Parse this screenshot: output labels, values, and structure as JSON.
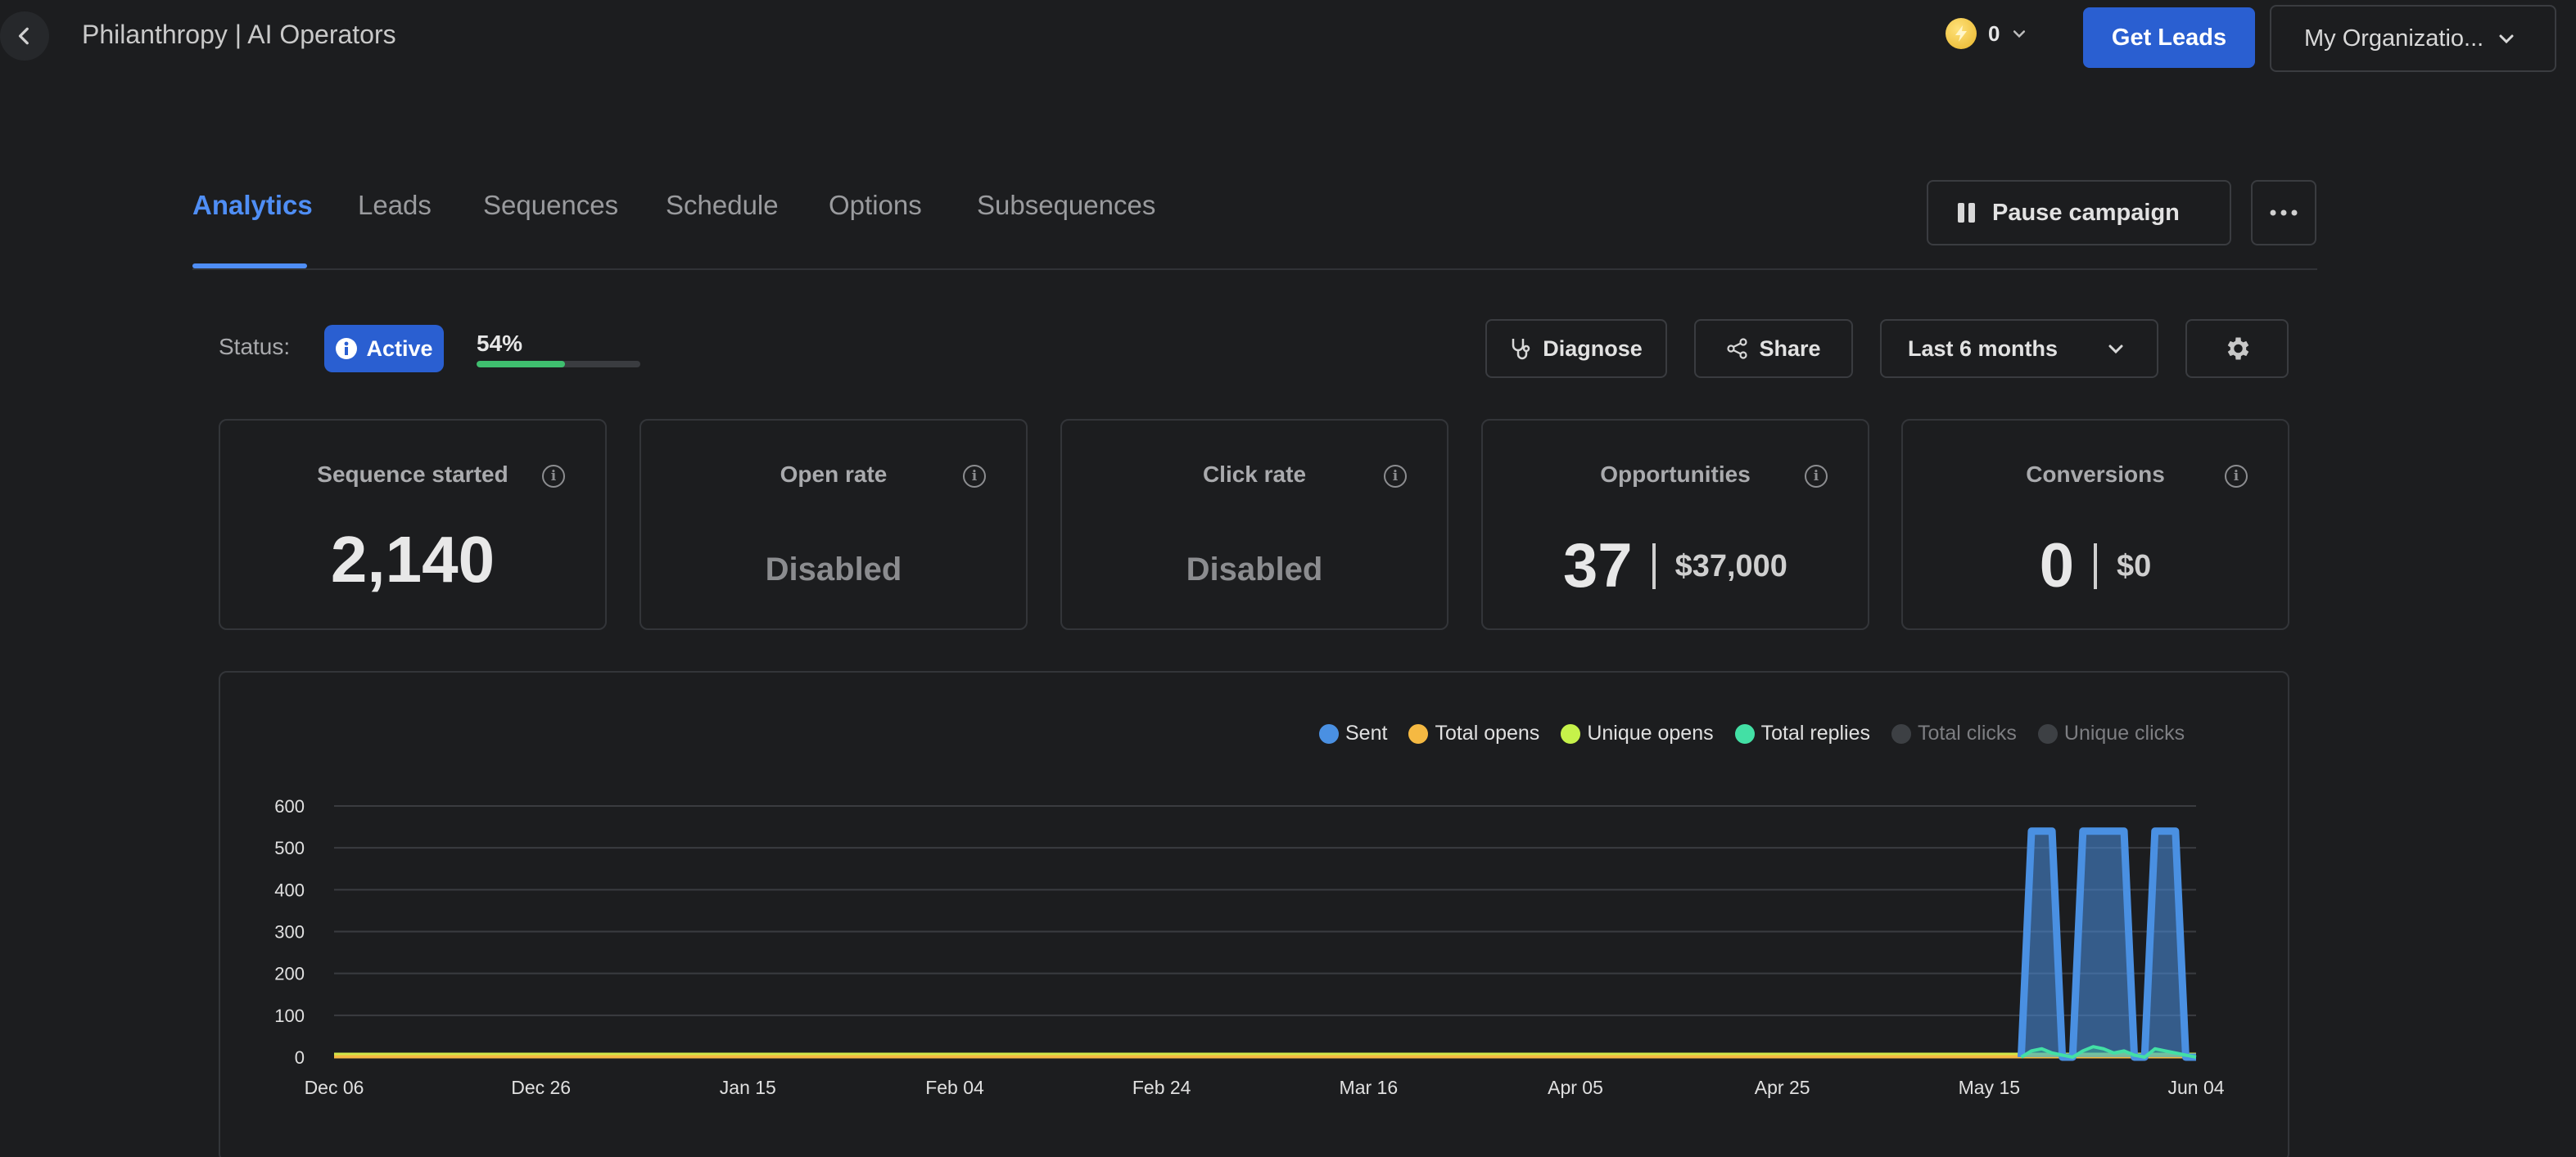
{
  "header": {
    "title": "Philanthropy | AI Operators",
    "credits": "0",
    "get_leads_label": "Get Leads",
    "org_label": "My Organizatio..."
  },
  "tabs": [
    {
      "label": "Analytics",
      "active": true
    },
    {
      "label": "Leads"
    },
    {
      "label": "Sequences"
    },
    {
      "label": "Schedule"
    },
    {
      "label": "Options"
    },
    {
      "label": "Subsequences"
    }
  ],
  "actions": {
    "pause_label": "Pause campaign"
  },
  "status": {
    "label": "Status:",
    "badge": "Active",
    "progress_text": "54%",
    "progress_value": 54
  },
  "toolbar": {
    "diagnose": "Diagnose",
    "share": "Share",
    "range": "Last 6 months"
  },
  "stats": [
    {
      "title": "Sequence started",
      "value": "2,140"
    },
    {
      "title": "Open rate",
      "value": "Disabled"
    },
    {
      "title": "Click rate",
      "value": "Disabled"
    },
    {
      "title": "Opportunities",
      "value": "37",
      "amount": "$37,000"
    },
    {
      "title": "Conversions",
      "value": "0",
      "amount": "$0"
    }
  ],
  "colors": {
    "accent": "#2a5fd1",
    "tab_active": "#4f8ef5",
    "sent": "#4a90e2",
    "total_opens": "#f5b942",
    "unique_opens": "#c6f24a",
    "total_replies": "#43e0a5",
    "disabled": "#3d4044"
  },
  "chart_data": {
    "type": "area",
    "legend": [
      {
        "name": "Sent",
        "color": "#4a90e2",
        "enabled": true
      },
      {
        "name": "Total opens",
        "color": "#f5b942",
        "enabled": true
      },
      {
        "name": "Unique opens",
        "color": "#c6f24a",
        "enabled": true
      },
      {
        "name": "Total replies",
        "color": "#43e0a5",
        "enabled": true
      },
      {
        "name": "Total clicks",
        "color": "#3d4044",
        "enabled": false
      },
      {
        "name": "Unique clicks",
        "color": "#3d4044",
        "enabled": false
      }
    ],
    "x_ticks": [
      "Dec 06",
      "Dec 26",
      "Jan 15",
      "Feb 04",
      "Feb 24",
      "Mar 16",
      "Apr 05",
      "Apr 25",
      "May 15",
      "Jun 04"
    ],
    "y_ticks": [
      0,
      100,
      200,
      300,
      400,
      500,
      600
    ],
    "ylim": [
      0,
      600
    ],
    "x": [
      "May 18",
      "May 19",
      "May 20",
      "May 21",
      "May 22",
      "May 23",
      "May 24",
      "May 25",
      "May 26",
      "May 27",
      "May 28",
      "May 29",
      "May 30",
      "May 31",
      "Jun 01",
      "Jun 02",
      "Jun 03",
      "Jun 04"
    ],
    "series": [
      {
        "name": "Sent",
        "values": [
          0,
          540,
          540,
          540,
          0,
          0,
          540,
          540,
          540,
          540,
          540,
          0,
          0,
          540,
          540,
          540,
          0,
          0
        ]
      },
      {
        "name": "Total replies",
        "values": [
          0,
          15,
          20,
          10,
          5,
          0,
          15,
          25,
          20,
          10,
          15,
          5,
          0,
          20,
          15,
          10,
          5,
          0
        ]
      },
      {
        "name": "Total opens",
        "values": [
          0,
          0,
          0,
          0,
          0,
          0,
          0,
          0,
          0,
          0,
          0,
          0,
          0,
          0,
          0,
          0,
          0,
          0
        ]
      },
      {
        "name": "Unique opens",
        "values": [
          0,
          0,
          0,
          0,
          0,
          0,
          0,
          0,
          0,
          0,
          0,
          0,
          0,
          0,
          0,
          0,
          0,
          0
        ]
      }
    ]
  }
}
